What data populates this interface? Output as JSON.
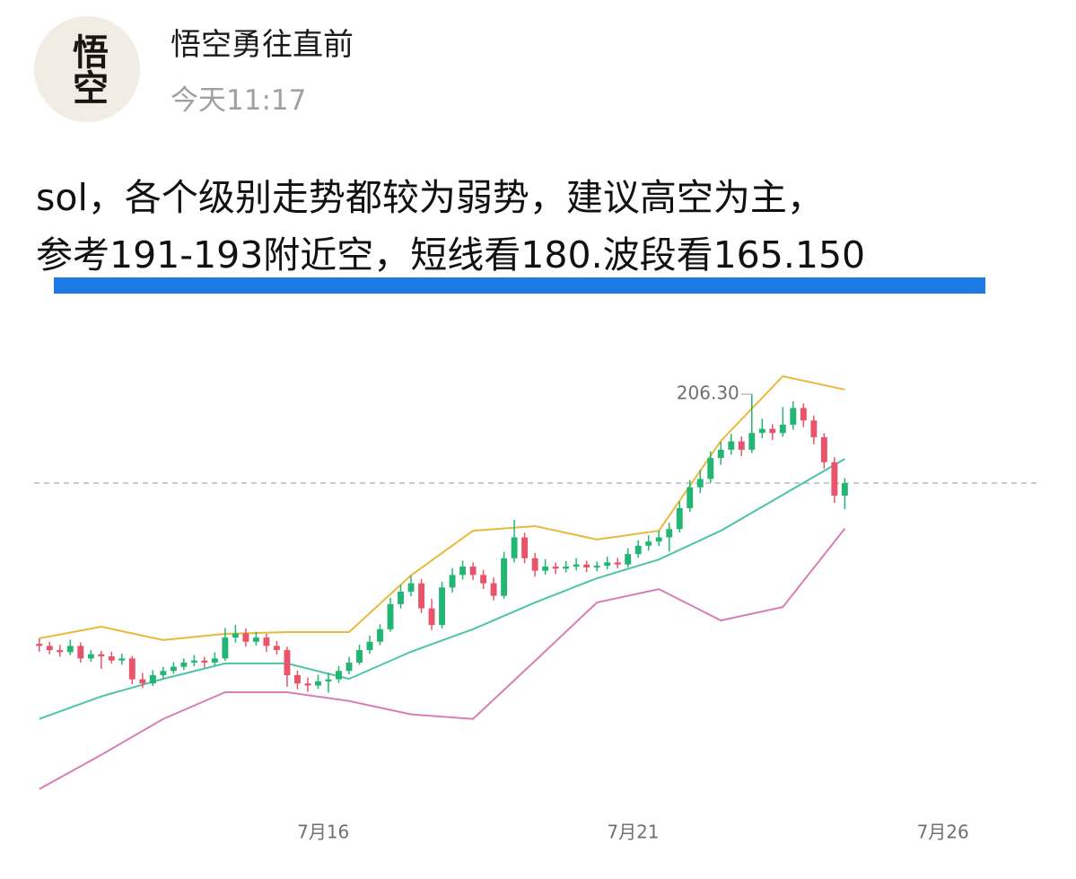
{
  "post": {
    "author": "悟空勇往直前",
    "time": "今天11:17",
    "avatar_text": "悟空",
    "text_lines": [
      "sol，各个级别走势都较为弱势，建议高空为主，",
      "参考191-193附近空，短线看180.波段看165.150"
    ]
  },
  "chart_data": {
    "type": "candlestick",
    "up_color": "#22b573",
    "down_color": "#e9546b",
    "ohlc": [
      [
        146.5,
        147.8,
        144.6,
        146
      ],
      [
        146,
        147.0,
        144.0,
        145
      ],
      [
        145,
        146.2,
        143.4,
        144.5
      ],
      [
        144.5,
        147.5,
        143.8,
        146
      ],
      [
        146,
        146.8,
        142.0,
        143
      ],
      [
        143,
        145.0,
        142.2,
        144
      ],
      [
        144,
        144.8,
        140.5,
        143.5
      ],
      [
        143.5,
        144.6,
        141.8,
        142.5
      ],
      [
        142.5,
        144.2,
        141.5,
        143
      ],
      [
        143,
        143.6,
        136.8,
        138
      ],
      [
        138,
        139.5,
        135.9,
        137
      ],
      [
        137,
        140.2,
        136.4,
        139
      ],
      [
        139,
        141.0,
        138.2,
        140
      ],
      [
        140,
        142.1,
        139.3,
        141
      ],
      [
        141,
        143.0,
        140.2,
        142
      ],
      [
        142,
        143.8,
        141.1,
        142.5
      ],
      [
        142.5,
        143.4,
        140.8,
        142
      ],
      [
        142,
        144.5,
        141.3,
        143
      ],
      [
        143,
        150.3,
        142.4,
        148
      ],
      [
        148,
        151.0,
        146.8,
        149
      ],
      [
        149,
        150.2,
        145.8,
        147
      ],
      [
        147,
        149.4,
        146.1,
        148
      ],
      [
        148,
        148.9,
        144.6,
        146
      ],
      [
        146,
        147.2,
        143.9,
        145
      ],
      [
        145,
        145.8,
        136.2,
        139
      ],
      [
        139,
        140.1,
        135.6,
        137
      ],
      [
        137,
        138.4,
        135.0,
        136.5
      ],
      [
        136.5,
        139.1,
        135.7,
        137.5
      ],
      [
        137.5,
        139.6,
        134.8,
        138
      ],
      [
        138,
        141.2,
        137.1,
        140
      ],
      [
        140,
        143.4,
        139.2,
        142
      ],
      [
        142,
        146.3,
        141.5,
        145
      ],
      [
        145,
        148.5,
        144.1,
        147
      ],
      [
        147,
        151.2,
        146.2,
        150
      ],
      [
        150,
        157.5,
        149.4,
        156
      ],
      [
        156,
        160.6,
        155.0,
        159
      ],
      [
        159,
        162.8,
        157.9,
        161
      ],
      [
        161,
        162.0,
        153.9,
        155
      ],
      [
        155,
        157.3,
        149.8,
        151
      ],
      [
        151,
        161.4,
        150.2,
        160
      ],
      [
        160,
        164.6,
        158.8,
        163
      ],
      [
        163,
        166.4,
        161.9,
        165
      ],
      [
        165,
        166.0,
        161.8,
        163
      ],
      [
        163,
        164.2,
        159.6,
        161
      ],
      [
        161,
        162.4,
        156.9,
        158
      ],
      [
        158,
        168.5,
        157.3,
        167
      ],
      [
        167,
        176.2,
        166.0,
        172
      ],
      [
        172,
        173.1,
        165.8,
        167
      ],
      [
        167,
        168.3,
        162.6,
        164
      ],
      [
        164,
        166.8,
        163.1,
        165
      ],
      [
        165,
        166.0,
        163.2,
        164.5
      ],
      [
        164.5,
        166.3,
        163.6,
        165
      ],
      [
        165,
        167.0,
        164.1,
        165.5
      ],
      [
        165.5,
        166.4,
        163.7,
        164.8
      ],
      [
        164.8,
        166.2,
        163.9,
        165.2
      ],
      [
        165.2,
        167.4,
        164.3,
        166
      ],
      [
        166,
        167.1,
        164.6,
        165.5
      ],
      [
        165.5,
        169.4,
        164.8,
        168
      ],
      [
        168,
        171.3,
        167.1,
        170
      ],
      [
        170,
        172.5,
        168.8,
        171
      ],
      [
        171,
        173.6,
        169.9,
        172
      ],
      [
        172,
        175.5,
        168.6,
        174
      ],
      [
        174,
        180.6,
        173.2,
        179
      ],
      [
        179,
        185.7,
        178.1,
        184
      ],
      [
        184,
        188.2,
        182.6,
        186
      ],
      [
        186,
        192.6,
        185.1,
        191
      ],
      [
        191,
        194.9,
        189.4,
        193
      ],
      [
        193,
        196.8,
        191.8,
        195
      ],
      [
        195,
        196.2,
        191.5,
        193
      ],
      [
        193,
        206.3,
        192.2,
        197
      ],
      [
        197,
        200.4,
        195.8,
        198
      ],
      [
        198,
        199.1,
        195.3,
        197
      ],
      [
        197,
        203.2,
        196.1,
        199
      ],
      [
        199,
        204.6,
        197.8,
        203
      ],
      [
        203,
        204.1,
        198.4,
        200
      ],
      [
        200,
        201.2,
        194.3,
        196
      ],
      [
        196,
        197.0,
        188.5,
        190
      ],
      [
        190,
        191.2,
        180.3,
        182
      ],
      [
        182,
        186.2,
        178.8,
        185
      ]
    ],
    "band_x": [
      0,
      6,
      12,
      18,
      24,
      30,
      36,
      42,
      48,
      54,
      60,
      66,
      72,
      78
    ],
    "bands": [
      {
        "color": "#e8b93a",
        "values": [
          147.8,
          150.6,
          147.4,
          148.9,
          149.3,
          149.3,
          162.9,
          173.6,
          174.7,
          171.5,
          173.6,
          195.1,
          210.6,
          207.4
        ]
      },
      {
        "color": "#4cc4a8",
        "values": [
          128.5,
          133.9,
          138.1,
          141.8,
          141.8,
          138.1,
          144.6,
          150.0,
          156.4,
          162.2,
          166.7,
          173.6,
          182.2,
          190.8
        ]
      },
      {
        "color": "#d77fb4",
        "values": [
          111.7,
          119.9,
          128.5,
          134.9,
          134.9,
          132.8,
          129.6,
          128.5,
          142.4,
          156.4,
          159.6,
          152.1,
          155.3,
          174.1
        ]
      }
    ],
    "annotation": {
      "value": 206.3,
      "label": "206.30",
      "x": 69
    },
    "xlim": [
      -0.5,
      97
    ],
    "ylim": [
      105,
      219
    ],
    "xticks": [
      {
        "value": 27.5,
        "label": "7月16"
      },
      {
        "value": 57.5,
        "label": "7月21"
      },
      {
        "value": 87.5,
        "label": "7月26"
      }
    ]
  }
}
